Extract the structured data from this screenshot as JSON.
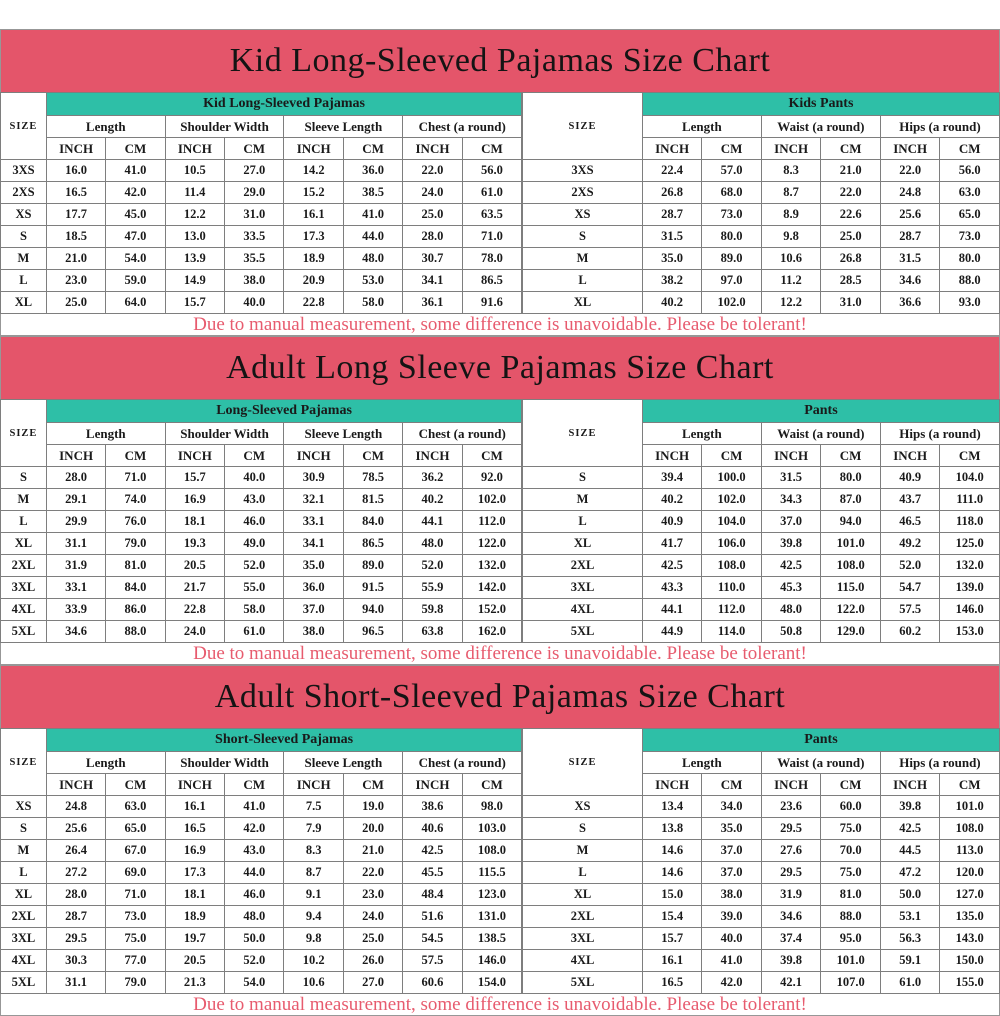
{
  "size_label": "SIZE",
  "units": [
    "INCH",
    "CM"
  ],
  "disclaimer": "Due to manual measurement, some difference is unavoidable. Please be tolerant!",
  "colors": {
    "header_band": "#e4556a",
    "table_group_band": "#2ebfa7",
    "disclaimer_text": "#e75b6e",
    "grid_line": "#7e7e7e"
  },
  "sections": [
    {
      "title": "Kid Long-Sleeved Pajamas Size Chart",
      "left": {
        "group_title": "Kid Long-Sleeved Pajamas",
        "columns": [
          "Length",
          "Shoulder Width",
          "Sleeve Length",
          "Chest (a round)"
        ],
        "rows": [
          {
            "size": "3XS",
            "values": [
              "16.0",
              "41.0",
              "10.5",
              "27.0",
              "14.2",
              "36.0",
              "22.0",
              "56.0"
            ]
          },
          {
            "size": "2XS",
            "values": [
              "16.5",
              "42.0",
              "11.4",
              "29.0",
              "15.2",
              "38.5",
              "24.0",
              "61.0"
            ]
          },
          {
            "size": "XS",
            "values": [
              "17.7",
              "45.0",
              "12.2",
              "31.0",
              "16.1",
              "41.0",
              "25.0",
              "63.5"
            ]
          },
          {
            "size": "S",
            "values": [
              "18.5",
              "47.0",
              "13.0",
              "33.5",
              "17.3",
              "44.0",
              "28.0",
              "71.0"
            ]
          },
          {
            "size": "M",
            "values": [
              "21.0",
              "54.0",
              "13.9",
              "35.5",
              "18.9",
              "48.0",
              "30.7",
              "78.0"
            ]
          },
          {
            "size": "L",
            "values": [
              "23.0",
              "59.0",
              "14.9",
              "38.0",
              "20.9",
              "53.0",
              "34.1",
              "86.5"
            ]
          },
          {
            "size": "XL",
            "values": [
              "25.0",
              "64.0",
              "15.7",
              "40.0",
              "22.8",
              "58.0",
              "36.1",
              "91.6"
            ]
          }
        ]
      },
      "right": {
        "group_title": "Kids Pants",
        "columns": [
          "Length",
          "Waist (a round)",
          "Hips (a round)"
        ],
        "rows": [
          {
            "size": "3XS",
            "values": [
              "22.4",
              "57.0",
              "8.3",
              "21.0",
              "22.0",
              "56.0"
            ]
          },
          {
            "size": "2XS",
            "values": [
              "26.8",
              "68.0",
              "8.7",
              "22.0",
              "24.8",
              "63.0"
            ]
          },
          {
            "size": "XS",
            "values": [
              "28.7",
              "73.0",
              "8.9",
              "22.6",
              "25.6",
              "65.0"
            ]
          },
          {
            "size": "S",
            "values": [
              "31.5",
              "80.0",
              "9.8",
              "25.0",
              "28.7",
              "73.0"
            ]
          },
          {
            "size": "M",
            "values": [
              "35.0",
              "89.0",
              "10.6",
              "26.8",
              "31.5",
              "80.0"
            ]
          },
          {
            "size": "L",
            "values": [
              "38.2",
              "97.0",
              "11.2",
              "28.5",
              "34.6",
              "88.0"
            ]
          },
          {
            "size": "XL",
            "values": [
              "40.2",
              "102.0",
              "12.2",
              "31.0",
              "36.6",
              "93.0"
            ]
          }
        ]
      }
    },
    {
      "title": "Adult Long Sleeve Pajamas Size Chart",
      "left": {
        "group_title": "Long-Sleeved Pajamas",
        "columns": [
          "Length",
          "Shoulder Width",
          "Sleeve Length",
          "Chest (a round)"
        ],
        "rows": [
          {
            "size": "S",
            "values": [
              "28.0",
              "71.0",
              "15.7",
              "40.0",
              "30.9",
              "78.5",
              "36.2",
              "92.0"
            ]
          },
          {
            "size": "M",
            "values": [
              "29.1",
              "74.0",
              "16.9",
              "43.0",
              "32.1",
              "81.5",
              "40.2",
              "102.0"
            ]
          },
          {
            "size": "L",
            "values": [
              "29.9",
              "76.0",
              "18.1",
              "46.0",
              "33.1",
              "84.0",
              "44.1",
              "112.0"
            ]
          },
          {
            "size": "XL",
            "values": [
              "31.1",
              "79.0",
              "19.3",
              "49.0",
              "34.1",
              "86.5",
              "48.0",
              "122.0"
            ]
          },
          {
            "size": "2XL",
            "values": [
              "31.9",
              "81.0",
              "20.5",
              "52.0",
              "35.0",
              "89.0",
              "52.0",
              "132.0"
            ]
          },
          {
            "size": "3XL",
            "values": [
              "33.1",
              "84.0",
              "21.7",
              "55.0",
              "36.0",
              "91.5",
              "55.9",
              "142.0"
            ]
          },
          {
            "size": "4XL",
            "values": [
              "33.9",
              "86.0",
              "22.8",
              "58.0",
              "37.0",
              "94.0",
              "59.8",
              "152.0"
            ]
          },
          {
            "size": "5XL",
            "values": [
              "34.6",
              "88.0",
              "24.0",
              "61.0",
              "38.0",
              "96.5",
              "63.8",
              "162.0"
            ]
          }
        ]
      },
      "right": {
        "group_title": "Pants",
        "columns": [
          "Length",
          "Waist (a round)",
          "Hips (a round)"
        ],
        "rows": [
          {
            "size": "S",
            "values": [
              "39.4",
              "100.0",
              "31.5",
              "80.0",
              "40.9",
              "104.0"
            ]
          },
          {
            "size": "M",
            "values": [
              "40.2",
              "102.0",
              "34.3",
              "87.0",
              "43.7",
              "111.0"
            ]
          },
          {
            "size": "L",
            "values": [
              "40.9",
              "104.0",
              "37.0",
              "94.0",
              "46.5",
              "118.0"
            ]
          },
          {
            "size": "XL",
            "values": [
              "41.7",
              "106.0",
              "39.8",
              "101.0",
              "49.2",
              "125.0"
            ]
          },
          {
            "size": "2XL",
            "values": [
              "42.5",
              "108.0",
              "42.5",
              "108.0",
              "52.0",
              "132.0"
            ]
          },
          {
            "size": "3XL",
            "values": [
              "43.3",
              "110.0",
              "45.3",
              "115.0",
              "54.7",
              "139.0"
            ]
          },
          {
            "size": "4XL",
            "values": [
              "44.1",
              "112.0",
              "48.0",
              "122.0",
              "57.5",
              "146.0"
            ]
          },
          {
            "size": "5XL",
            "values": [
              "44.9",
              "114.0",
              "50.8",
              "129.0",
              "60.2",
              "153.0"
            ]
          }
        ]
      }
    },
    {
      "title": "Adult Short-Sleeved Pajamas Size Chart",
      "left": {
        "group_title": "Short-Sleeved Pajamas",
        "columns": [
          "Length",
          "Shoulder Width",
          "Sleeve Length",
          "Chest (a round)"
        ],
        "rows": [
          {
            "size": "XS",
            "values": [
              "24.8",
              "63.0",
              "16.1",
              "41.0",
              "7.5",
              "19.0",
              "38.6",
              "98.0"
            ]
          },
          {
            "size": "S",
            "values": [
              "25.6",
              "65.0",
              "16.5",
              "42.0",
              "7.9",
              "20.0",
              "40.6",
              "103.0"
            ]
          },
          {
            "size": "M",
            "values": [
              "26.4",
              "67.0",
              "16.9",
              "43.0",
              "8.3",
              "21.0",
              "42.5",
              "108.0"
            ]
          },
          {
            "size": "L",
            "values": [
              "27.2",
              "69.0",
              "17.3",
              "44.0",
              "8.7",
              "22.0",
              "45.5",
              "115.5"
            ]
          },
          {
            "size": "XL",
            "values": [
              "28.0",
              "71.0",
              "18.1",
              "46.0",
              "9.1",
              "23.0",
              "48.4",
              "123.0"
            ]
          },
          {
            "size": "2XL",
            "values": [
              "28.7",
              "73.0",
              "18.9",
              "48.0",
              "9.4",
              "24.0",
              "51.6",
              "131.0"
            ]
          },
          {
            "size": "3XL",
            "values": [
              "29.5",
              "75.0",
              "19.7",
              "50.0",
              "9.8",
              "25.0",
              "54.5",
              "138.5"
            ]
          },
          {
            "size": "4XL",
            "values": [
              "30.3",
              "77.0",
              "20.5",
              "52.0",
              "10.2",
              "26.0",
              "57.5",
              "146.0"
            ]
          },
          {
            "size": "5XL",
            "values": [
              "31.1",
              "79.0",
              "21.3",
              "54.0",
              "10.6",
              "27.0",
              "60.6",
              "154.0"
            ]
          }
        ]
      },
      "right": {
        "group_title": "Pants",
        "columns": [
          "Length",
          "Waist (a round)",
          "Hips (a round)"
        ],
        "rows": [
          {
            "size": "XS",
            "values": [
              "13.4",
              "34.0",
              "23.6",
              "60.0",
              "39.8",
              "101.0"
            ]
          },
          {
            "size": "S",
            "values": [
              "13.8",
              "35.0",
              "29.5",
              "75.0",
              "42.5",
              "108.0"
            ]
          },
          {
            "size": "M",
            "values": [
              "14.6",
              "37.0",
              "27.6",
              "70.0",
              "44.5",
              "113.0"
            ]
          },
          {
            "size": "L",
            "values": [
              "14.6",
              "37.0",
              "29.5",
              "75.0",
              "47.2",
              "120.0"
            ]
          },
          {
            "size": "XL",
            "values": [
              "15.0",
              "38.0",
              "31.9",
              "81.0",
              "50.0",
              "127.0"
            ]
          },
          {
            "size": "2XL",
            "values": [
              "15.4",
              "39.0",
              "34.6",
              "88.0",
              "53.1",
              "135.0"
            ]
          },
          {
            "size": "3XL",
            "values": [
              "15.7",
              "40.0",
              "37.4",
              "95.0",
              "56.3",
              "143.0"
            ]
          },
          {
            "size": "4XL",
            "values": [
              "16.1",
              "41.0",
              "39.8",
              "101.0",
              "59.1",
              "150.0"
            ]
          },
          {
            "size": "5XL",
            "values": [
              "16.5",
              "42.0",
              "42.1",
              "107.0",
              "61.0",
              "155.0"
            ]
          }
        ]
      }
    }
  ]
}
